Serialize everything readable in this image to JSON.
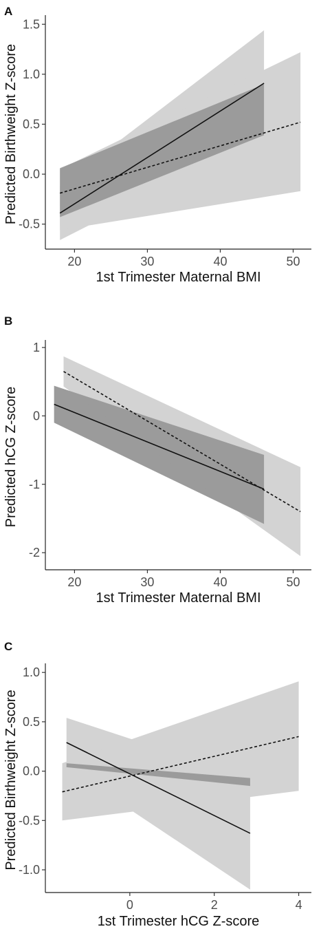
{
  "chart_data": [
    {
      "type": "line",
      "panel": "A",
      "xlabel": "1st Trimester Maternal BMI",
      "ylabel": "Predicted Birthweight Z-score",
      "xlim": [
        16,
        52.5
      ],
      "ylim": [
        -0.75,
        1.55
      ],
      "x_ticks": [
        20,
        30,
        40,
        50
      ],
      "y_ticks": [
        -0.5,
        0.0,
        0.5,
        1.0,
        1.5
      ],
      "x_tick_labels": [
        "20",
        "30",
        "40",
        "50"
      ],
      "y_tick_labels": [
        "-0.5",
        "0.0",
        "0.5",
        "1.0",
        "1.5"
      ],
      "grid": false,
      "series": [
        {
          "style": "solid",
          "color": "#111111",
          "x": [
            18,
            46
          ],
          "y": [
            -0.39,
            0.91
          ],
          "ci_lower": [
            -0.66,
            0.38
          ],
          "ci_upper": [
            -0.12,
            1.44
          ],
          "ci_dark_lower": [
            -0.43,
            0.39
          ],
          "ci_dark_upper": [
            0.06,
            0.9
          ]
        },
        {
          "style": "dashed",
          "color": "#111111",
          "x": [
            18,
            51
          ],
          "y": [
            -0.19,
            0.52
          ],
          "ci_lower": [
            -0.56,
            -0.17
          ],
          "ci_upper": [
            0.05,
            1.22
          ]
        }
      ]
    },
    {
      "type": "line",
      "panel": "B",
      "xlabel": "1st Trimester Maternal BMI",
      "ylabel": "Predicted hCG Z-score",
      "xlim": [
        16,
        52.5
      ],
      "ylim": [
        -2.25,
        1.05
      ],
      "x_ticks": [
        20,
        30,
        40,
        50
      ],
      "y_ticks": [
        -2,
        -1,
        0,
        1
      ],
      "x_tick_labels": [
        "20",
        "30",
        "40",
        "50"
      ],
      "y_tick_labels": [
        "-2",
        "-1",
        "0",
        "1"
      ],
      "grid": false,
      "series": [
        {
          "style": "solid",
          "color": "#111111",
          "x": [
            17.2,
            46
          ],
          "y": [
            0.17,
            -1.07
          ],
          "ci_lower": [
            -0.1,
            -1.58
          ],
          "ci_upper": [
            0.44,
            -0.57
          ],
          "ci_dark_lower": [
            -0.1,
            -1.58
          ],
          "ci_dark_upper": [
            0.44,
            -0.57
          ]
        },
        {
          "style": "dashed",
          "color": "#111111",
          "x": [
            18.5,
            51
          ],
          "y": [
            0.65,
            -1.4
          ],
          "ci_lower": [
            0.43,
            -2.05
          ],
          "ci_upper": [
            0.87,
            -0.75
          ]
        }
      ]
    },
    {
      "type": "line",
      "panel": "C",
      "xlabel": "1st Trimester hCG Z-score",
      "ylabel": "Predicted Birthweight Z-score",
      "xlim": [
        -2.0,
        4.3
      ],
      "ylim": [
        -1.23,
        1.05
      ],
      "x_ticks": [
        0,
        2,
        4
      ],
      "y_ticks": [
        -1.0,
        -0.5,
        0.0,
        0.5,
        1.0
      ],
      "x_tick_labels": [
        "0",
        "2",
        "4"
      ],
      "y_tick_labels": [
        "-1.0",
        "-0.5",
        "0.0",
        "0.5",
        "1.0"
      ],
      "grid": false,
      "series": [
        {
          "style": "solid",
          "color": "#111111",
          "x": [
            -1.5,
            2.85
          ],
          "y": [
            0.29,
            -0.63
          ],
          "ci_lower": [
            0.04,
            -1.2
          ],
          "ci_upper": [
            0.54,
            -0.07
          ],
          "ci_dark_lower": [
            0.04,
            -0.15
          ],
          "ci_dark_upper": [
            0.08,
            -0.07
          ]
        },
        {
          "style": "dashed",
          "color": "#111111",
          "x": [
            -1.6,
            4.0
          ],
          "y": [
            -0.21,
            0.35
          ],
          "ci_lower": [
            -0.5,
            -0.2
          ],
          "ci_upper": [
            0.08,
            0.91
          ]
        }
      ]
    }
  ],
  "colors": {
    "band_light": "#d3d3d3",
    "band_dark": "#909090",
    "line": "#111111",
    "axis": "#222222"
  }
}
